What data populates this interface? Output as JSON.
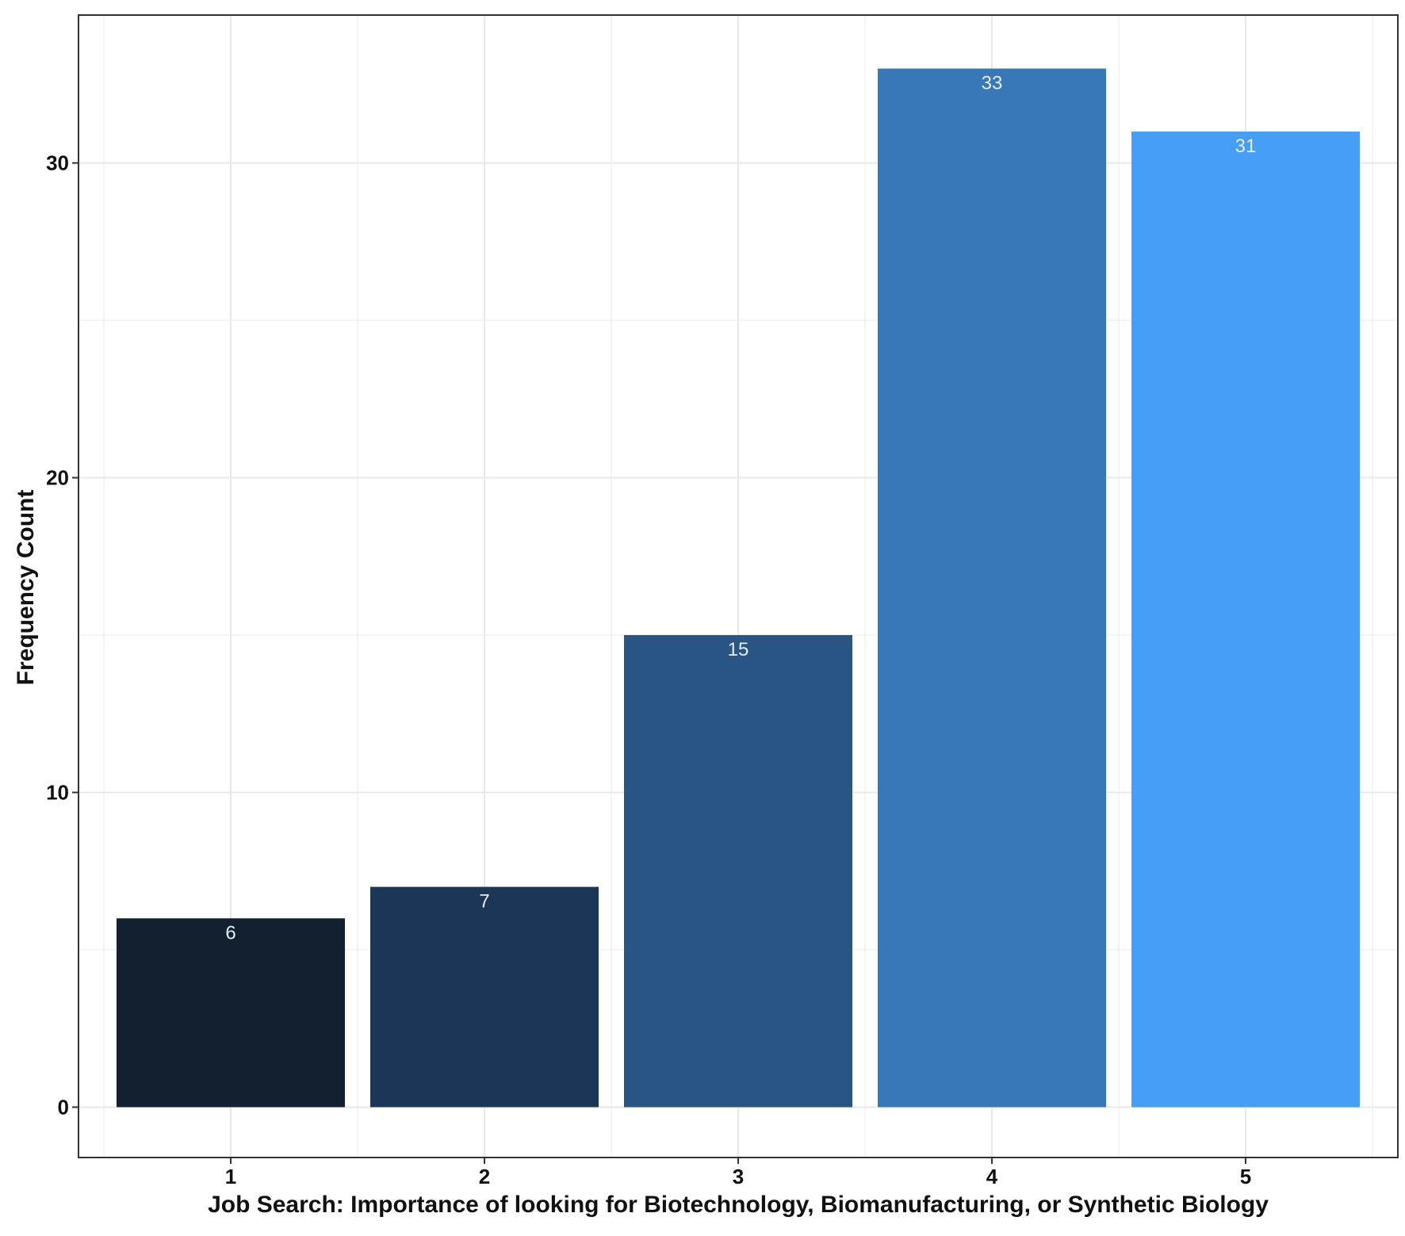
{
  "chart_data": {
    "type": "bar",
    "categories": [
      "1",
      "2",
      "3",
      "4",
      "5"
    ],
    "values": [
      6,
      7,
      15,
      33,
      31
    ],
    "data_labels": [
      "6",
      "7",
      "15",
      "33",
      "31"
    ],
    "xlabel": "Job Search: Importance of looking for Biotechnology, Biomanufacturing, or Synthetic Biology",
    "ylabel": "Frequency Count",
    "ylim": [
      -1.6,
      34.7
    ],
    "yticks": [
      0,
      10,
      20,
      30
    ],
    "ytick_labels": [
      "0",
      "10",
      "20",
      "30"
    ],
    "grid": true,
    "legend": "none",
    "colors": [
      "#132030",
      "#1c3657",
      "#285583",
      "#3878b9",
      "#479ef5"
    ],
    "label_color": "#e6edf5",
    "panel_border_color": "#333333",
    "grid_color": "#e8e8e8"
  }
}
